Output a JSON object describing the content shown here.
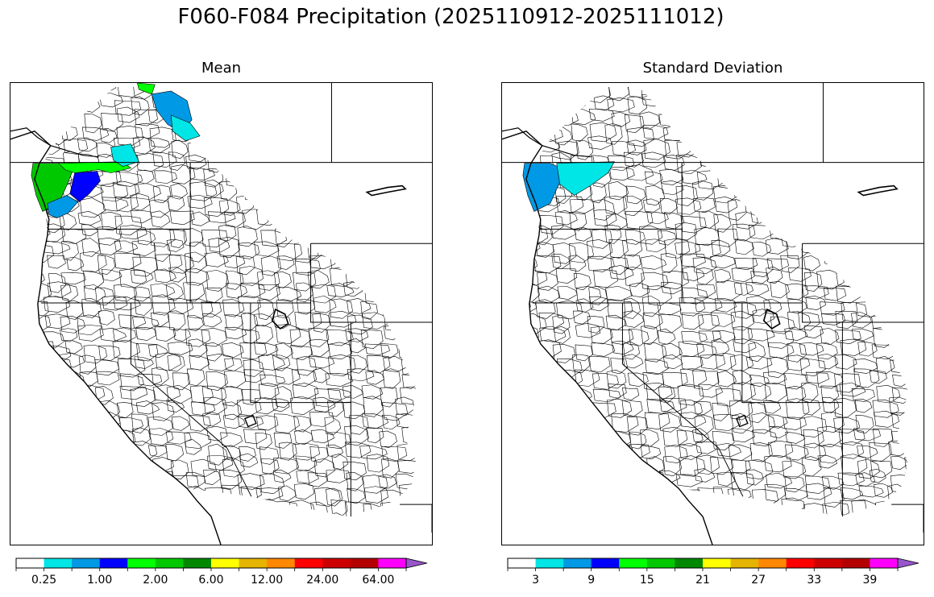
{
  "title": "F060-F084 Precipitation (2025110912-2025111012)",
  "panels": [
    {
      "title": "Mean",
      "colorbar": {
        "colors": [
          "#ffffff",
          "#00e5e5",
          "#0099e5",
          "#0000ff",
          "#00ff00",
          "#00c800",
          "#008800",
          "#ffff00",
          "#e5b400",
          "#ff8800",
          "#ff0000",
          "#cc0000",
          "#b40000",
          "#ff00ff",
          "#9955cc"
        ],
        "tick_labels": [
          "0.25",
          "1.00",
          "2.00",
          "6.00",
          "12.00",
          "24.00",
          "64.00"
        ],
        "extend": "max"
      },
      "shaded_regions": [
        {
          "area": "Olympic Peninsula / NW Washington",
          "color": "#00c800"
        },
        {
          "area": "Puget Sound / W Cascades",
          "color": "#0000ff"
        },
        {
          "area": "SW Washington coast",
          "color": "#0099e5"
        },
        {
          "area": "N Cascades",
          "color": "#00ff00"
        },
        {
          "area": "S British Columbia",
          "color": "#00e5e5"
        },
        {
          "area": "C British Columbia",
          "color": "#0099e5"
        }
      ]
    },
    {
      "title": "Standard Deviation",
      "colorbar": {
        "colors": [
          "#ffffff",
          "#00e5e5",
          "#0099e5",
          "#0000ff",
          "#00ff00",
          "#00c800",
          "#008800",
          "#ffff00",
          "#e5b400",
          "#ff8800",
          "#ff0000",
          "#cc0000",
          "#b40000",
          "#ff00ff",
          "#9955cc"
        ],
        "tick_labels": [
          "3",
          "9",
          "15",
          "21",
          "27",
          "33",
          "39"
        ],
        "extend": "max"
      },
      "shaded_regions": [
        {
          "area": "Olympic Peninsula / NW Washington",
          "color": "#0099e5"
        },
        {
          "area": "Puget Sound / N Cascades",
          "color": "#00e5e5"
        }
      ]
    }
  ]
}
